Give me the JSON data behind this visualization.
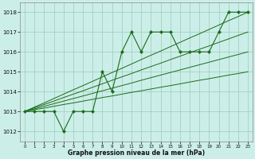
{
  "x": [
    0,
    1,
    2,
    3,
    4,
    5,
    6,
    7,
    8,
    9,
    10,
    11,
    12,
    13,
    14,
    15,
    16,
    17,
    18,
    19,
    20,
    21,
    22,
    23
  ],
  "line_main": [
    1013.0,
    1013.0,
    1013.0,
    1013.0,
    1012.0,
    1013.0,
    1013.0,
    1013.0,
    1015.0,
    1014.0,
    1016.0,
    1017.0,
    1016.0,
    1017.0,
    1017.0,
    1017.0,
    1016.0,
    1016.0,
    1016.0,
    1016.0,
    1017.0,
    1018.0,
    1018.0,
    1018.0
  ],
  "line_trend1": [
    1013.0,
    1013.22,
    1013.43,
    1013.65,
    1013.87,
    1014.09,
    1014.3,
    1014.52,
    1014.74,
    1014.96,
    1015.17,
    1015.39,
    1015.61,
    1015.83,
    1016.04,
    1016.26,
    1016.48,
    1016.7,
    1016.91,
    1017.13,
    1017.35,
    1017.57,
    1017.78,
    1018.0
  ],
  "line_trend2": [
    1013.0,
    1013.18,
    1013.35,
    1013.52,
    1013.7,
    1013.87,
    1014.04,
    1014.22,
    1014.39,
    1014.57,
    1014.74,
    1014.91,
    1015.09,
    1015.26,
    1015.43,
    1015.61,
    1015.78,
    1015.96,
    1016.13,
    1016.3,
    1016.48,
    1016.65,
    1016.83,
    1017.0
  ],
  "line_trend3": [
    1013.0,
    1013.13,
    1013.26,
    1013.39,
    1013.52,
    1013.65,
    1013.78,
    1013.91,
    1014.04,
    1014.17,
    1014.3,
    1014.43,
    1014.57,
    1014.7,
    1014.83,
    1014.96,
    1015.09,
    1015.22,
    1015.35,
    1015.48,
    1015.61,
    1015.74,
    1015.87,
    1016.0
  ],
  "line_trend4": [
    1013.0,
    1013.09,
    1013.17,
    1013.26,
    1013.35,
    1013.43,
    1013.52,
    1013.61,
    1013.7,
    1013.78,
    1013.87,
    1013.96,
    1014.04,
    1014.13,
    1014.22,
    1014.3,
    1014.39,
    1014.48,
    1014.57,
    1014.65,
    1014.74,
    1014.83,
    1014.91,
    1015.0
  ],
  "bg_color": "#cceee8",
  "line_color": "#1a6b1a",
  "grid_color": "#99ccbb",
  "xlabel": "Graphe pression niveau de la mer (hPa)",
  "ylim": [
    1011.5,
    1018.5
  ],
  "xlim": [
    -0.5,
    23.5
  ],
  "yticks": [
    1012,
    1013,
    1014,
    1015,
    1016,
    1017,
    1018
  ],
  "xticks": [
    0,
    1,
    2,
    3,
    4,
    5,
    6,
    7,
    8,
    9,
    10,
    11,
    12,
    13,
    14,
    15,
    16,
    17,
    18,
    19,
    20,
    21,
    22,
    23
  ]
}
